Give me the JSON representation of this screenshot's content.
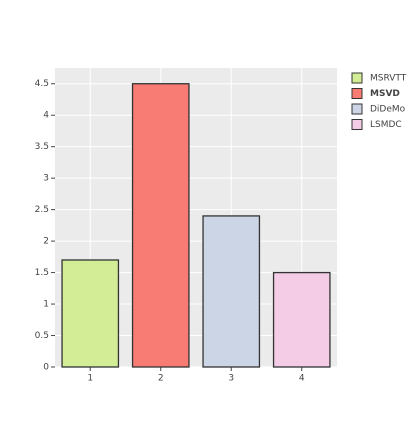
{
  "chart_data": {
    "type": "bar",
    "series": [
      {
        "name": "MSRVTT",
        "color": "#d2ed96",
        "x": [
          1
        ],
        "values": [
          1.7
        ]
      },
      {
        "name": "MSVD",
        "color": "#f87c73",
        "x": [
          2
        ],
        "values": [
          4.5
        ],
        "bold": true
      },
      {
        "name": "DiDeMo",
        "color": "#ccd5e6",
        "x": [
          3
        ],
        "values": [
          2.4
        ]
      },
      {
        "name": "LSMDC",
        "color": "#f4cce6",
        "x": [
          4
        ],
        "values": [
          1.5
        ]
      }
    ],
    "xlim": [
      0.5,
      4.5
    ],
    "xticks": [
      1,
      2,
      3,
      4
    ],
    "ylim": [
      0,
      4.75
    ],
    "yticks": [
      0,
      0.5,
      1,
      1.5,
      2,
      2.5,
      3,
      3.5,
      4,
      4.5
    ],
    "grid": true,
    "legend": "top-right"
  }
}
